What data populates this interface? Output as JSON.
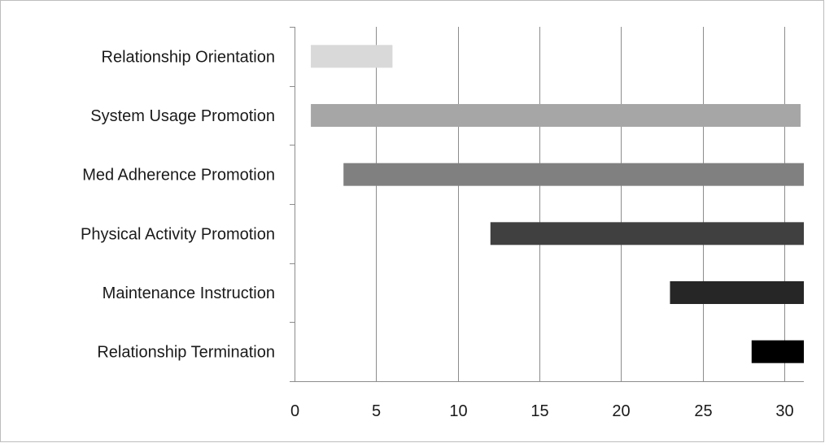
{
  "chart_data": {
    "type": "bar",
    "orientation": "horizontal",
    "subtype": "gantt",
    "title": "",
    "xlabel": "",
    "ylabel": "",
    "xlim": [
      0,
      31.2
    ],
    "xticks": [
      0,
      5,
      10,
      15,
      20,
      25,
      30
    ],
    "grid": "vertical",
    "legend": "none",
    "categories": [
      "Relationship Orientation",
      "System Usage Promotion",
      "Med Adherence Promotion",
      "Physical Activity Promotion",
      "Maintenance Instruction",
      "Relationship Termination"
    ],
    "bars": [
      {
        "start": 1,
        "end": 6,
        "color": "#d9d9d9"
      },
      {
        "start": 1,
        "end": 31,
        "color": "#a6a6a6"
      },
      {
        "start": 3,
        "end": 31.2,
        "color": "#808080"
      },
      {
        "start": 12,
        "end": 31.2,
        "color": "#404040"
      },
      {
        "start": 23,
        "end": 31.2,
        "color": "#262626"
      },
      {
        "start": 28,
        "end": 31.2,
        "color": "#000000"
      }
    ]
  }
}
